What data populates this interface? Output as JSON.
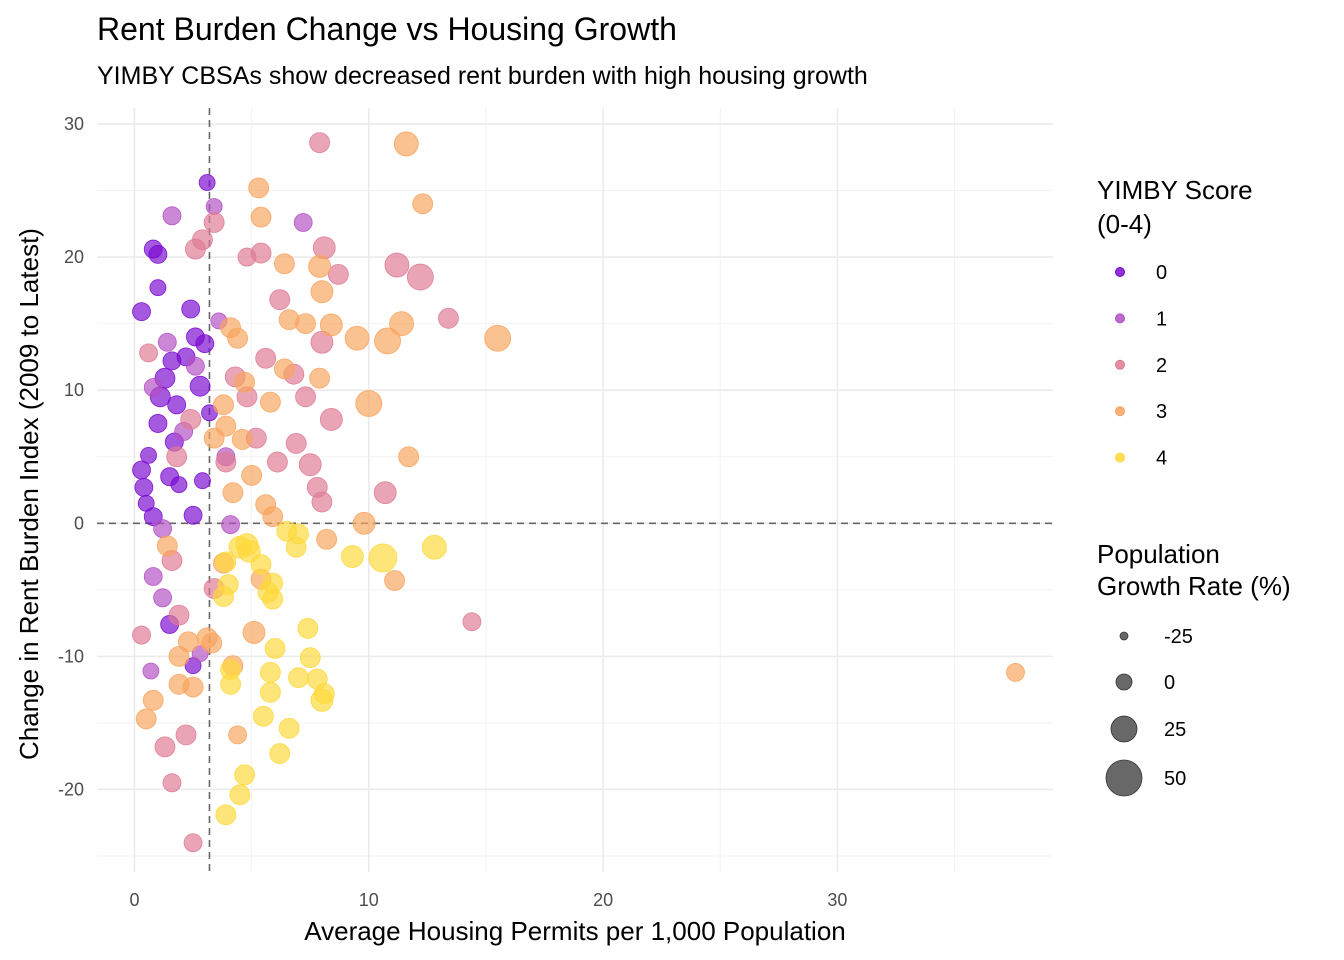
{
  "chart_data": {
    "type": "scatter",
    "title": "Rent Burden Change vs Housing Growth",
    "subtitle": "YIMBY CBSAs show decreased rent burden with high housing growth",
    "xlabel": "Average Housing Permits per 1,000 Population",
    "ylabel": "Change in Rent Burden Index (2009 to Latest)",
    "xlim": [
      -1.6,
      39.2
    ],
    "ylim": [
      -26.2,
      31.2
    ],
    "x_ticks": [
      0,
      10,
      20,
      30
    ],
    "y_ticks": [
      -20,
      -10,
      0,
      10,
      20,
      30
    ],
    "x_tick_labels": [
      "0",
      "10",
      "20",
      "30"
    ],
    "y_tick_labels": [
      "-20",
      "-10",
      "0",
      "10",
      "20",
      "30"
    ],
    "grid": true,
    "reference_lines": {
      "vline_x": 3.2,
      "hline_y": 0
    },
    "color_legend": {
      "title": [
        "YIMBY Score",
        "(0-4)"
      ],
      "placement": "right",
      "entries": [
        {
          "label": "0",
          "score": 0,
          "color": "#7a0bd0"
        },
        {
          "label": "1",
          "score": 1,
          "color": "#b24fc4"
        },
        {
          "label": "2",
          "score": 2,
          "color": "#de7a93"
        },
        {
          "label": "3",
          "score": 3,
          "color": "#f8a35d"
        },
        {
          "label": "4",
          "score": 4,
          "color": "#fdd839"
        }
      ]
    },
    "size_legend": {
      "title": [
        "Population",
        "Growth Rate (%)"
      ],
      "placement": "right",
      "entries": [
        {
          "label": "-25",
          "value": -25
        },
        {
          "label": "0",
          "value": 0
        },
        {
          "label": "25",
          "value": 25
        },
        {
          "label": "50",
          "value": 50
        }
      ]
    },
    "points": [
      {
        "x": 0.3,
        "y": 15.9,
        "score": 0,
        "growth": 5
      },
      {
        "x": 0.8,
        "y": 20.6,
        "score": 0,
        "growth": 5
      },
      {
        "x": 1.0,
        "y": 20.2,
        "score": 0,
        "growth": 5
      },
      {
        "x": 1.0,
        "y": 17.7,
        "score": 0,
        "growth": 0
      },
      {
        "x": 0.6,
        "y": 5.1,
        "score": 0,
        "growth": 0
      },
      {
        "x": 0.3,
        "y": 4.0,
        "score": 0,
        "growth": 5
      },
      {
        "x": 0.4,
        "y": 2.7,
        "score": 0,
        "growth": 5
      },
      {
        "x": 0.5,
        "y": 1.5,
        "score": 0,
        "growth": 0
      },
      {
        "x": 0.8,
        "y": 0.5,
        "score": 0,
        "growth": 5
      },
      {
        "x": 1.1,
        "y": 9.5,
        "score": 0,
        "growth": 10
      },
      {
        "x": 1.0,
        "y": 7.5,
        "score": 0,
        "growth": 5
      },
      {
        "x": 1.3,
        "y": 10.9,
        "score": 0,
        "growth": 10
      },
      {
        "x": 1.6,
        "y": 12.2,
        "score": 0,
        "growth": 5
      },
      {
        "x": 1.8,
        "y": 8.9,
        "score": 0,
        "growth": 5
      },
      {
        "x": 1.5,
        "y": 3.5,
        "score": 0,
        "growth": 5
      },
      {
        "x": 1.9,
        "y": 2.9,
        "score": 0,
        "growth": 0
      },
      {
        "x": 1.7,
        "y": 6.1,
        "score": 0,
        "growth": 5
      },
      {
        "x": 2.2,
        "y": 12.5,
        "score": 0,
        "growth": 5
      },
      {
        "x": 2.4,
        "y": 16.1,
        "score": 0,
        "growth": 5
      },
      {
        "x": 2.6,
        "y": 14.0,
        "score": 0,
        "growth": 5
      },
      {
        "x": 2.8,
        "y": 10.3,
        "score": 0,
        "growth": 10
      },
      {
        "x": 2.5,
        "y": 0.6,
        "score": 0,
        "growth": 5
      },
      {
        "x": 3.1,
        "y": 25.6,
        "score": 0,
        "growth": 0
      },
      {
        "x": 3.0,
        "y": 13.5,
        "score": 0,
        "growth": 5
      },
      {
        "x": 3.2,
        "y": 8.3,
        "score": 0,
        "growth": 0
      },
      {
        "x": 2.9,
        "y": 3.2,
        "score": 0,
        "growth": 0
      },
      {
        "x": 2.5,
        "y": -10.7,
        "score": 0,
        "growth": 0
      },
      {
        "x": 1.5,
        "y": -7.6,
        "score": 0,
        "growth": 5
      },
      {
        "x": 1.6,
        "y": 23.1,
        "score": 1,
        "growth": 5
      },
      {
        "x": 3.4,
        "y": 23.8,
        "score": 1,
        "growth": 0
      },
      {
        "x": 7.2,
        "y": 22.6,
        "score": 1,
        "growth": 5
      },
      {
        "x": 1.4,
        "y": 13.6,
        "score": 1,
        "growth": 5
      },
      {
        "x": 0.8,
        "y": 10.2,
        "score": 1,
        "growth": 5
      },
      {
        "x": 2.1,
        "y": 6.9,
        "score": 1,
        "growth": 5
      },
      {
        "x": 1.2,
        "y": -0.4,
        "score": 1,
        "growth": 5
      },
      {
        "x": 0.7,
        "y": -11.1,
        "score": 1,
        "growth": 0
      },
      {
        "x": 1.2,
        "y": -5.6,
        "score": 1,
        "growth": 5
      },
      {
        "x": 0.8,
        "y": -4.0,
        "score": 1,
        "growth": 5
      },
      {
        "x": 2.8,
        "y": -9.8,
        "score": 1,
        "growth": 0
      },
      {
        "x": 3.6,
        "y": 15.2,
        "score": 1,
        "growth": 0
      },
      {
        "x": 2.6,
        "y": 11.8,
        "score": 1,
        "growth": 5
      },
      {
        "x": 3.9,
        "y": 5.0,
        "score": 1,
        "growth": 5
      },
      {
        "x": 4.1,
        "y": -0.1,
        "score": 1,
        "growth": 5
      },
      {
        "x": 7.9,
        "y": 28.6,
        "score": 2,
        "growth": 10
      },
      {
        "x": 3.4,
        "y": 22.6,
        "score": 2,
        "growth": 10
      },
      {
        "x": 2.9,
        "y": 21.3,
        "score": 2,
        "growth": 10
      },
      {
        "x": 2.6,
        "y": 20.6,
        "score": 2,
        "growth": 10
      },
      {
        "x": 5.4,
        "y": 20.3,
        "score": 2,
        "growth": 10
      },
      {
        "x": 4.8,
        "y": 20.0,
        "score": 2,
        "growth": 5
      },
      {
        "x": 8.1,
        "y": 20.7,
        "score": 2,
        "growth": 15
      },
      {
        "x": 11.2,
        "y": 19.4,
        "score": 2,
        "growth": 20
      },
      {
        "x": 12.2,
        "y": 18.5,
        "score": 2,
        "growth": 25
      },
      {
        "x": 8.7,
        "y": 18.7,
        "score": 2,
        "growth": 10
      },
      {
        "x": 6.2,
        "y": 16.8,
        "score": 2,
        "growth": 10
      },
      {
        "x": 13.4,
        "y": 15.4,
        "score": 2,
        "growth": 10
      },
      {
        "x": 8.0,
        "y": 13.6,
        "score": 2,
        "growth": 15
      },
      {
        "x": 5.6,
        "y": 12.4,
        "score": 2,
        "growth": 10
      },
      {
        "x": 4.3,
        "y": 11.0,
        "score": 2,
        "growth": 10
      },
      {
        "x": 4.8,
        "y": 9.5,
        "score": 2,
        "growth": 10
      },
      {
        "x": 6.8,
        "y": 11.2,
        "score": 2,
        "growth": 10
      },
      {
        "x": 7.3,
        "y": 9.5,
        "score": 2,
        "growth": 10
      },
      {
        "x": 8.4,
        "y": 7.8,
        "score": 2,
        "growth": 15
      },
      {
        "x": 6.9,
        "y": 6.0,
        "score": 2,
        "growth": 10
      },
      {
        "x": 7.5,
        "y": 4.4,
        "score": 2,
        "growth": 15
      },
      {
        "x": 6.1,
        "y": 4.6,
        "score": 2,
        "growth": 10
      },
      {
        "x": 7.8,
        "y": 2.7,
        "score": 2,
        "growth": 10
      },
      {
        "x": 8.0,
        "y": 1.6,
        "score": 2,
        "growth": 10
      },
      {
        "x": 10.7,
        "y": 2.3,
        "score": 2,
        "growth": 15
      },
      {
        "x": 5.2,
        "y": 6.4,
        "score": 2,
        "growth": 10
      },
      {
        "x": 3.9,
        "y": 4.6,
        "score": 2,
        "growth": 10
      },
      {
        "x": 2.4,
        "y": 7.8,
        "score": 2,
        "growth": 10
      },
      {
        "x": 1.8,
        "y": 5.0,
        "score": 2,
        "growth": 10
      },
      {
        "x": 0.6,
        "y": 12.8,
        "score": 2,
        "growth": 5
      },
      {
        "x": 0.3,
        "y": -8.4,
        "score": 2,
        "growth": 5
      },
      {
        "x": 1.3,
        "y": -16.8,
        "score": 2,
        "growth": 10
      },
      {
        "x": 1.6,
        "y": -19.5,
        "score": 2,
        "growth": 5
      },
      {
        "x": 2.5,
        "y": -24.0,
        "score": 2,
        "growth": 5
      },
      {
        "x": 2.2,
        "y": -15.9,
        "score": 2,
        "growth": 10
      },
      {
        "x": 1.9,
        "y": -6.9,
        "score": 2,
        "growth": 10
      },
      {
        "x": 1.6,
        "y": -2.8,
        "score": 2,
        "growth": 10
      },
      {
        "x": 14.4,
        "y": -7.4,
        "score": 2,
        "growth": 5
      },
      {
        "x": 3.4,
        "y": -4.9,
        "score": 2,
        "growth": 10
      },
      {
        "x": 11.6,
        "y": 28.5,
        "score": 3,
        "growth": 20
      },
      {
        "x": 12.3,
        "y": 24.0,
        "score": 3,
        "growth": 10
      },
      {
        "x": 5.3,
        "y": 25.2,
        "score": 3,
        "growth": 10
      },
      {
        "x": 5.4,
        "y": 23.0,
        "score": 3,
        "growth": 10
      },
      {
        "x": 6.4,
        "y": 19.5,
        "score": 3,
        "growth": 10
      },
      {
        "x": 7.9,
        "y": 19.3,
        "score": 3,
        "growth": 15
      },
      {
        "x": 8.0,
        "y": 17.4,
        "score": 3,
        "growth": 15
      },
      {
        "x": 7.3,
        "y": 15.0,
        "score": 3,
        "growth": 10
      },
      {
        "x": 8.4,
        "y": 14.9,
        "score": 3,
        "growth": 15
      },
      {
        "x": 6.6,
        "y": 15.3,
        "score": 3,
        "growth": 10
      },
      {
        "x": 9.5,
        "y": 13.9,
        "score": 3,
        "growth": 20
      },
      {
        "x": 10.8,
        "y": 13.7,
        "score": 3,
        "growth": 25
      },
      {
        "x": 11.4,
        "y": 15.0,
        "score": 3,
        "growth": 20
      },
      {
        "x": 15.5,
        "y": 13.9,
        "score": 3,
        "growth": 25
      },
      {
        "x": 4.1,
        "y": 14.7,
        "score": 3,
        "growth": 10
      },
      {
        "x": 4.4,
        "y": 13.9,
        "score": 3,
        "growth": 10
      },
      {
        "x": 10.0,
        "y": 9.0,
        "score": 3,
        "growth": 25
      },
      {
        "x": 6.4,
        "y": 11.6,
        "score": 3,
        "growth": 10
      },
      {
        "x": 7.9,
        "y": 10.9,
        "score": 3,
        "growth": 10
      },
      {
        "x": 4.7,
        "y": 10.6,
        "score": 3,
        "growth": 10
      },
      {
        "x": 5.8,
        "y": 9.1,
        "score": 3,
        "growth": 10
      },
      {
        "x": 3.8,
        "y": 8.9,
        "score": 3,
        "growth": 10
      },
      {
        "x": 3.4,
        "y": 6.4,
        "score": 3,
        "growth": 10
      },
      {
        "x": 4.6,
        "y": 6.3,
        "score": 3,
        "growth": 10
      },
      {
        "x": 11.7,
        "y": 5.0,
        "score": 3,
        "growth": 10
      },
      {
        "x": 5.0,
        "y": 3.6,
        "score": 3,
        "growth": 10
      },
      {
        "x": 4.2,
        "y": 2.3,
        "score": 3,
        "growth": 10
      },
      {
        "x": 5.6,
        "y": 1.4,
        "score": 3,
        "growth": 10
      },
      {
        "x": 5.9,
        "y": 0.5,
        "score": 3,
        "growth": 10
      },
      {
        "x": 9.8,
        "y": 0.0,
        "score": 3,
        "growth": 15
      },
      {
        "x": 8.2,
        "y": -1.2,
        "score": 3,
        "growth": 10
      },
      {
        "x": 11.1,
        "y": -4.3,
        "score": 3,
        "growth": 10
      },
      {
        "x": 5.4,
        "y": -4.2,
        "score": 3,
        "growth": 10
      },
      {
        "x": 5.1,
        "y": -8.2,
        "score": 3,
        "growth": 15
      },
      {
        "x": 3.3,
        "y": -9.0,
        "score": 3,
        "growth": 10
      },
      {
        "x": 2.3,
        "y": -8.9,
        "score": 3,
        "growth": 10
      },
      {
        "x": 1.9,
        "y": -10.0,
        "score": 3,
        "growth": 10
      },
      {
        "x": 1.9,
        "y": -12.1,
        "score": 3,
        "growth": 10
      },
      {
        "x": 2.5,
        "y": -12.3,
        "score": 3,
        "growth": 10
      },
      {
        "x": 0.8,
        "y": -13.3,
        "score": 3,
        "growth": 10
      },
      {
        "x": 0.5,
        "y": -14.7,
        "score": 3,
        "growth": 10
      },
      {
        "x": 4.4,
        "y": -15.9,
        "score": 3,
        "growth": 5
      },
      {
        "x": 4.2,
        "y": -10.7,
        "score": 3,
        "growth": 10
      },
      {
        "x": 3.1,
        "y": -8.6,
        "score": 3,
        "growth": 10
      },
      {
        "x": 3.8,
        "y": -3.0,
        "score": 3,
        "growth": 10
      },
      {
        "x": 1.4,
        "y": -1.7,
        "score": 3,
        "growth": 10
      },
      {
        "x": 37.6,
        "y": -11.2,
        "score": 3,
        "growth": 5
      },
      {
        "x": 3.9,
        "y": 7.3,
        "score": 3,
        "growth": 10
      },
      {
        "x": 6.5,
        "y": -0.6,
        "score": 4,
        "growth": 10
      },
      {
        "x": 7.0,
        "y": -0.8,
        "score": 4,
        "growth": 10
      },
      {
        "x": 6.9,
        "y": -1.8,
        "score": 4,
        "growth": 10
      },
      {
        "x": 9.3,
        "y": -2.5,
        "score": 4,
        "growth": 15
      },
      {
        "x": 10.6,
        "y": -2.6,
        "score": 4,
        "growth": 30
      },
      {
        "x": 12.8,
        "y": -1.8,
        "score": 4,
        "growth": 20
      },
      {
        "x": 4.5,
        "y": -1.8,
        "score": 4,
        "growth": 15
      },
      {
        "x": 4.9,
        "y": -2.1,
        "score": 4,
        "growth": 15
      },
      {
        "x": 3.9,
        "y": -2.9,
        "score": 4,
        "growth": 10
      },
      {
        "x": 5.4,
        "y": -3.1,
        "score": 4,
        "growth": 10
      },
      {
        "x": 5.9,
        "y": -4.5,
        "score": 4,
        "growth": 10
      },
      {
        "x": 4.0,
        "y": -4.6,
        "score": 4,
        "growth": 10
      },
      {
        "x": 5.7,
        "y": -5.2,
        "score": 4,
        "growth": 10
      },
      {
        "x": 5.9,
        "y": -5.7,
        "score": 4,
        "growth": 10
      },
      {
        "x": 3.8,
        "y": -5.5,
        "score": 4,
        "growth": 10
      },
      {
        "x": 7.4,
        "y": -7.9,
        "score": 4,
        "growth": 10
      },
      {
        "x": 6.0,
        "y": -9.4,
        "score": 4,
        "growth": 10
      },
      {
        "x": 7.5,
        "y": -10.1,
        "score": 4,
        "growth": 10
      },
      {
        "x": 4.1,
        "y": -11.0,
        "score": 4,
        "growth": 10
      },
      {
        "x": 5.8,
        "y": -11.2,
        "score": 4,
        "growth": 10
      },
      {
        "x": 7.0,
        "y": -11.6,
        "score": 4,
        "growth": 10
      },
      {
        "x": 7.8,
        "y": -11.7,
        "score": 4,
        "growth": 10
      },
      {
        "x": 4.1,
        "y": -12.1,
        "score": 4,
        "growth": 10
      },
      {
        "x": 5.8,
        "y": -12.7,
        "score": 4,
        "growth": 10
      },
      {
        "x": 8.1,
        "y": -12.8,
        "score": 4,
        "growth": 10
      },
      {
        "x": 8.0,
        "y": -13.3,
        "score": 4,
        "growth": 15
      },
      {
        "x": 5.5,
        "y": -14.5,
        "score": 4,
        "growth": 10
      },
      {
        "x": 6.6,
        "y": -15.4,
        "score": 4,
        "growth": 10
      },
      {
        "x": 6.2,
        "y": -17.3,
        "score": 4,
        "growth": 10
      },
      {
        "x": 4.7,
        "y": -18.9,
        "score": 4,
        "growth": 10
      },
      {
        "x": 4.5,
        "y": -20.4,
        "score": 4,
        "growth": 10
      },
      {
        "x": 3.9,
        "y": -21.9,
        "score": 4,
        "growth": 10
      },
      {
        "x": 4.8,
        "y": -1.6,
        "score": 4,
        "growth": 15
      }
    ]
  }
}
